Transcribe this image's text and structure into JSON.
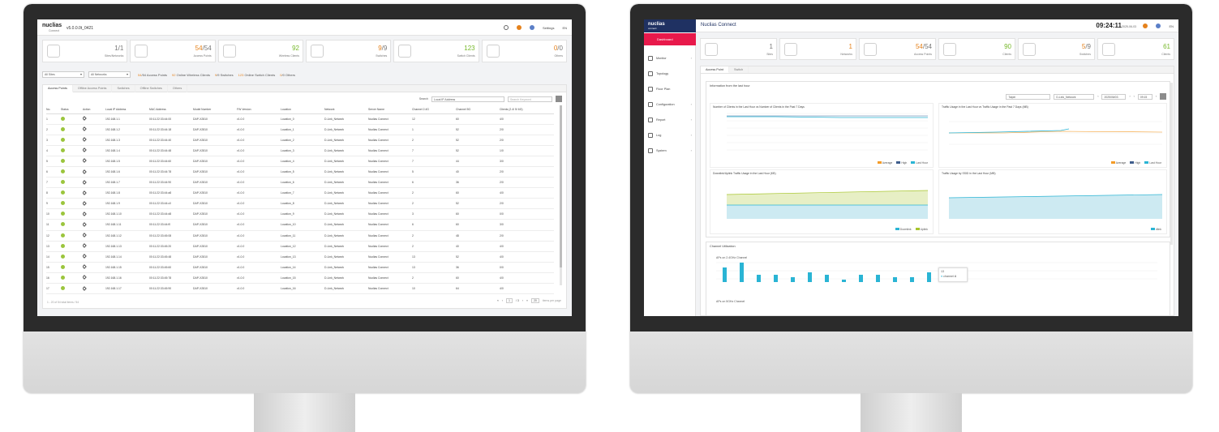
{
  "left": {
    "brand": "nuclias",
    "brand_sub": "Connect",
    "version": "v5.0.0.0t_0421",
    "header": {
      "settings": "Settings",
      "lang": "EN"
    },
    "cards": [
      {
        "value": "1",
        "total": "/1",
        "label": "Sites/Networks",
        "color": "gray"
      },
      {
        "value": "54",
        "total": "/54",
        "label": "Access Points",
        "color": "orange"
      },
      {
        "value": "92",
        "total": "",
        "label": "Wireless Clients",
        "color": "green"
      },
      {
        "value": "9",
        "total": "/9",
        "label": "Switches",
        "color": "orange"
      },
      {
        "value": "123",
        "total": "",
        "label": "Switch Clients",
        "color": "green"
      },
      {
        "value": "0",
        "total": "/0",
        "label": "Others",
        "color": "orange"
      }
    ],
    "filters": {
      "site": "All Sites",
      "network": "All Networks",
      "stats": [
        {
          "num": "54",
          "rest": "/54 Access Points",
          "c": "o"
        },
        {
          "num": "92",
          "rest": " Online Wireless Clients",
          "c": "o"
        },
        {
          "num": "9",
          "rest": "/9 Switches",
          "c": "o"
        },
        {
          "num": "123",
          "rest": " Online Switch Clients",
          "c": "o"
        },
        {
          "num": "0",
          "rest": "/0 Others",
          "c": "o"
        }
      ]
    },
    "tabs": [
      "Access Points",
      "Offline Access Points",
      "Switches",
      "Offline Switches",
      "Others"
    ],
    "search": {
      "label": "Search",
      "field": "Local IP Address",
      "placeholder": "Search Keyword"
    },
    "columns": [
      "No.",
      "Status",
      "Action",
      "Local IP Address",
      "MAC Address",
      "Model Number",
      "FW Version",
      "Location",
      "Network",
      "Server Name",
      "Channel 2.4G",
      "Channel 5G",
      "Clients (2.4/ 5/ 6G)"
    ],
    "rows": [
      [
        "1",
        "192.168.1.1",
        "00:11:22:33:44:00",
        "DAP-X2810",
        "v1.0.0",
        "Location_0",
        "D-Link_Network",
        "Nuclias Connect",
        "12",
        "60",
        "4/0"
      ],
      [
        "2",
        "192.168.1.2",
        "00:11:22:33:44:18",
        "DAP-X2810",
        "v1.0.0",
        "Location_1",
        "D-Link_Network",
        "Nuclias Connect",
        "1",
        "52",
        "2/0"
      ],
      [
        "3",
        "192.168.1.3",
        "00:11:22:33:44:40",
        "DAP-X2810",
        "v1.0.0",
        "Location_2",
        "D-Link_Network",
        "Nuclias Connect",
        "2",
        "52",
        "2/0"
      ],
      [
        "4",
        "192.168.1.4",
        "00:11:22:33:44:48",
        "DAP-X2810",
        "v1.0.0",
        "Location_3",
        "D-Link_Network",
        "Nuclias Connect",
        "7",
        "52",
        "1/0"
      ],
      [
        "5",
        "192.168.1.5",
        "00:11:22:33:44:60",
        "DAP-X2810",
        "v1.0.0",
        "Location_4",
        "D-Link_Network",
        "Nuclias Connect",
        "7",
        "44",
        "3/0"
      ],
      [
        "6",
        "192.168.1.6",
        "00:11:22:33:44:78",
        "DAP-X2810",
        "v1.0.0",
        "Location_5",
        "D-Link_Network",
        "Nuclias Connect",
        "5",
        "40",
        "2/0"
      ],
      [
        "7",
        "192.168.1.7",
        "00:11:22:33:44:90",
        "DAP-X2810",
        "v1.0.0",
        "Location_6",
        "D-Link_Network",
        "Nuclias Connect",
        "6",
        "36",
        "2/0"
      ],
      [
        "8",
        "192.168.1.8",
        "00:11:22:33:44:a8",
        "DAP-X2810",
        "v1.0.0",
        "Location_7",
        "D-Link_Network",
        "Nuclias Connect",
        "2",
        "60",
        "4/0"
      ],
      [
        "9",
        "192.168.1.9",
        "00:11:22:33:44:c0",
        "DAP-X2810",
        "v1.0.0",
        "Location_8",
        "D-Link_Network",
        "Nuclias Connect",
        "2",
        "52",
        "2/0"
      ],
      [
        "10",
        "192.168.1.10",
        "00:11:22:33:44:d8",
        "DAP-X2810",
        "v1.0.0",
        "Location_9",
        "D-Link_Network",
        "Nuclias Connect",
        "3",
        "60",
        "0/0"
      ],
      [
        "11",
        "192.168.1.11",
        "00:11:22:33:44:f0",
        "DAP-X2810",
        "v1.0.0",
        "Location_10",
        "D-Link_Network",
        "Nuclias Connect",
        "6",
        "60",
        "3/0"
      ],
      [
        "12",
        "192.168.1.12",
        "00:11:22:33:45:08",
        "DAP-X2810",
        "v1.0.0",
        "Location_11",
        "D-Link_Network",
        "Nuclias Connect",
        "2",
        "48",
        "2/0"
      ],
      [
        "13",
        "192.168.1.13",
        "00:11:22:33:45:20",
        "DAP-X2810",
        "v1.0.0",
        "Location_12",
        "D-Link_Network",
        "Nuclias Connect",
        "2",
        "40",
        "4/0"
      ],
      [
        "14",
        "192.168.1.14",
        "00:11:22:33:45:48",
        "DAP-X2810",
        "v1.0.0",
        "Location_13",
        "D-Link_Network",
        "Nuclias Connect",
        "13",
        "52",
        "4/0"
      ],
      [
        "15",
        "192.168.1.15",
        "00:11:22:33:45:60",
        "DAP-X2810",
        "v1.0.0",
        "Location_14",
        "D-Link_Network",
        "Nuclias Connect",
        "13",
        "36",
        "0/0"
      ],
      [
        "16",
        "192.168.1.16",
        "00:11:22:33:45:78",
        "DAP-X2810",
        "v1.0.0",
        "Location_15",
        "D-Link_Network",
        "Nuclias Connect",
        "2",
        "60",
        "4/0"
      ],
      [
        "17",
        "192.168.1.17",
        "00:11:22:33:45:90",
        "DAP-X2810",
        "v1.0.0",
        "Location_16",
        "D-Link_Network",
        "Nuclias Connect",
        "10",
        "64",
        "4/0"
      ]
    ],
    "footer": "1 - 20 of 54 total items / 54",
    "pager": {
      "page": "1",
      "of": "/ 3",
      "size": "20",
      "size_label": "items per page"
    },
    "colors": {
      "orange": "#e5821c",
      "green": "#76b82a",
      "status": "#9bc53d"
    }
  },
  "right": {
    "brand": "nuclias",
    "brand_sub": "connect",
    "title": "Nuclias Connect",
    "clock": "09:24:11",
    "date": "2025-06-03",
    "lang": "EN",
    "menu": [
      {
        "label": "Dashboard",
        "active": true
      },
      {
        "label": "Monitor",
        "chev": true
      },
      {
        "label": "Topology"
      },
      {
        "label": "Floor Plan"
      },
      {
        "label": "Configuration",
        "chev": true
      },
      {
        "label": "Report",
        "chev": true
      },
      {
        "label": "Log",
        "chev": true
      },
      {
        "label": "System",
        "chev": true
      }
    ],
    "cards": [
      {
        "value": "1",
        "total": "",
        "label": "Sites",
        "c": "gray"
      },
      {
        "value": "1",
        "total": "",
        "label": "Networks",
        "c": "orange"
      },
      {
        "value": "54",
        "total": "/54",
        "label": "Access Points",
        "c": "orange"
      },
      {
        "value": "90",
        "total": "",
        "label": "Clients",
        "c": "green"
      },
      {
        "value": "5",
        "total": "/9",
        "label": "Switches",
        "c": "orange"
      },
      {
        "value": "61",
        "total": "",
        "label": "Clients",
        "c": "green"
      }
    ],
    "tabs": [
      "Access Point",
      "Switch"
    ],
    "info_title": "Information from the last hour",
    "controls": {
      "tz": "Taipei",
      "net": "D-Link_Network",
      "date": "2025/06/03",
      "time": "09:15"
    },
    "charts": [
      {
        "title": "Number of Clients in the Last Hour vs Number of Clients in the Past 7 Days",
        "legend": [
          "Average",
          "High",
          "Last Hour"
        ]
      },
      {
        "title": "Traffic Usage in the Last Hour  vs Traffic Usage in the Past 7 Days (MB)",
        "legend": [
          "Average",
          "High",
          "Last Hour"
        ]
      },
      {
        "title": "Downlink/Uplink Traffic Usage in the Last Hour (KB)",
        "legend": [
          "Downlink",
          "Uplink"
        ]
      },
      {
        "title": "Traffic Usage by SSID in the Last Hour (MB)",
        "legend": [
          "dlink"
        ]
      }
    ],
    "channel": {
      "title": "Channel Utilization",
      "sub24": "APs on 2.4GHz Channel",
      "sub5": "APs on 5GHz Channel",
      "tooltip_head": "13",
      "tooltip_label": "channel",
      "tooltip_value": "4"
    }
  }
}
